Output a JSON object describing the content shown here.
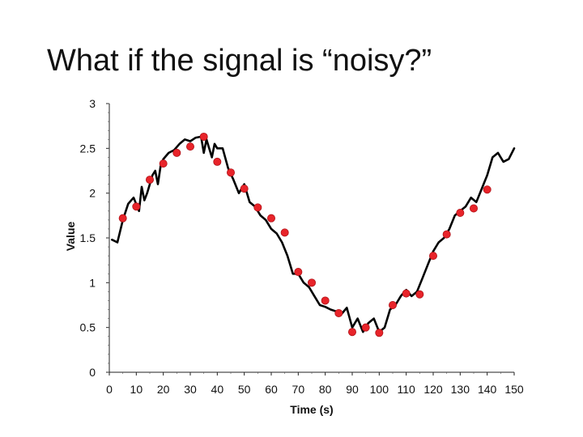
{
  "slide": {
    "title": "What if the signal is “noisy?”"
  },
  "chart_data": {
    "type": "line",
    "title": "",
    "xlabel": "Time (s)",
    "ylabel": "Value",
    "xlim": [
      0,
      150
    ],
    "ylim": [
      0,
      3
    ],
    "xticks": [
      0,
      10,
      20,
      30,
      40,
      50,
      60,
      70,
      80,
      90,
      100,
      110,
      120,
      130,
      140,
      150
    ],
    "yticks": [
      0,
      0.5,
      1,
      1.5,
      2,
      2.5,
      3
    ],
    "grid": false,
    "legend": "none",
    "colors": {
      "line": "#000000",
      "markers": "#e8242a",
      "marker_edge": "#b01218"
    },
    "series": [
      {
        "type": "line",
        "x": [
          1,
          3,
          5,
          7,
          9,
          11,
          12,
          13,
          14,
          15,
          16,
          17,
          18,
          19,
          20,
          22,
          24,
          26,
          28,
          30,
          32,
          34,
          35,
          36,
          37,
          38,
          39,
          40,
          42,
          44,
          46,
          48,
          50,
          52,
          54,
          56,
          58,
          60,
          62,
          64,
          66,
          68,
          70,
          72,
          74,
          76,
          78,
          80,
          82,
          84,
          86,
          88,
          90,
          92,
          94,
          96,
          98,
          100,
          102,
          104,
          106,
          108,
          110,
          112,
          114,
          116,
          118,
          120,
          122,
          124,
          126,
          128,
          130,
          132,
          134,
          136,
          138,
          140,
          142,
          144,
          146,
          148,
          150
        ],
        "y": [
          1.48,
          1.45,
          1.7,
          1.88,
          1.95,
          1.8,
          2.07,
          1.92,
          2.0,
          2.1,
          2.2,
          2.25,
          2.1,
          2.3,
          2.38,
          2.45,
          2.48,
          2.55,
          2.6,
          2.58,
          2.62,
          2.63,
          2.45,
          2.6,
          2.5,
          2.4,
          2.55,
          2.5,
          2.5,
          2.28,
          2.15,
          2.0,
          2.1,
          1.9,
          1.85,
          1.75,
          1.7,
          1.6,
          1.55,
          1.45,
          1.3,
          1.1,
          1.1,
          1.0,
          0.95,
          0.85,
          0.75,
          0.73,
          0.7,
          0.68,
          0.65,
          0.72,
          0.5,
          0.6,
          0.45,
          0.55,
          0.6,
          0.45,
          0.5,
          0.7,
          0.75,
          0.85,
          0.92,
          0.85,
          0.9,
          1.05,
          1.2,
          1.35,
          1.45,
          1.5,
          1.6,
          1.75,
          1.8,
          1.85,
          1.95,
          1.9,
          2.05,
          2.2,
          2.4,
          2.45,
          2.35,
          2.38,
          2.5
        ]
      },
      {
        "type": "scatter",
        "x": [
          5,
          10,
          15,
          20,
          25,
          30,
          35,
          40,
          45,
          50,
          55,
          60,
          65,
          70,
          75,
          80,
          85,
          90,
          95,
          100,
          105,
          110,
          115,
          120,
          125,
          130,
          135,
          140
        ],
        "y": [
          1.72,
          1.85,
          2.15,
          2.33,
          2.45,
          2.52,
          2.63,
          2.35,
          2.23,
          2.05,
          1.84,
          1.72,
          1.56,
          1.12,
          1.0,
          0.8,
          0.66,
          0.45,
          0.5,
          0.44,
          0.75,
          0.88,
          0.87,
          1.3,
          1.54,
          1.78,
          1.83,
          2.04
        ]
      }
    ]
  }
}
